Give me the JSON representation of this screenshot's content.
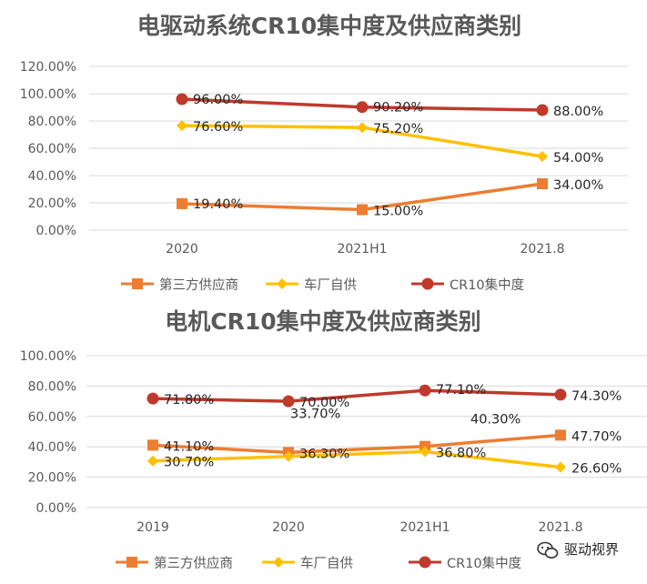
{
  "chart_data": [
    {
      "type": "line",
      "title": "电驱动系统CR10集中度及供应商类别",
      "categories": [
        "2020",
        "2021H1",
        "2021.8"
      ],
      "yticks": [
        "0.00%",
        "20.00%",
        "40.00%",
        "60.00%",
        "80.00%",
        "100.00%",
        "120.00%"
      ],
      "ylim": [
        0,
        120
      ],
      "grid": true,
      "legend_position": "bottom",
      "series": [
        {
          "name": "第三方供应商",
          "values": [
            19.4,
            15.0,
            34.0
          ],
          "labels": [
            "19.40%",
            "15.00%",
            "34.00%"
          ],
          "color": "#ED7D31",
          "marker": "square"
        },
        {
          "name": "车厂自供",
          "values": [
            76.6,
            75.2,
            54.0
          ],
          "labels": [
            "76.60%",
            "75.20%",
            "54.00%"
          ],
          "color": "#FFC000",
          "marker": "diamond"
        },
        {
          "name": "CR10集中度",
          "values": [
            96.0,
            90.2,
            88.0
          ],
          "labels": [
            "96.00%",
            "90.20%",
            "88.00%"
          ],
          "color": "#C0392B",
          "marker": "circle"
        }
      ]
    },
    {
      "type": "line",
      "title": "电机CR10集中度及供应商类别",
      "categories": [
        "2019",
        "2020",
        "2021H1",
        "2021.8"
      ],
      "yticks": [
        "0.00%",
        "20.00%",
        "40.00%",
        "60.00%",
        "80.00%",
        "100.00%"
      ],
      "ylim": [
        0,
        100
      ],
      "grid": true,
      "legend_position": "bottom",
      "series": [
        {
          "name": "第三方供应商",
          "values": [
            41.1,
            36.3,
            40.3,
            47.7
          ],
          "labels": [
            "41.10%",
            "36.30%",
            "40.30%",
            "47.70%"
          ],
          "color": "#ED7D31",
          "marker": "square"
        },
        {
          "name": "车厂自供",
          "values": [
            30.7,
            33.7,
            36.8,
            26.6
          ],
          "labels": [
            "30.70%",
            "33.70%",
            "36.80%",
            "26.60%"
          ],
          "color": "#FFC000",
          "marker": "diamond"
        },
        {
          "name": "CR10集中度",
          "values": [
            71.8,
            70.0,
            77.1,
            74.3
          ],
          "labels": [
            "71.80%",
            "70.00%",
            "77.10%",
            "74.30%"
          ],
          "color": "#C0392B",
          "marker": "circle"
        }
      ]
    }
  ],
  "watermark": {
    "text": "驱动视界",
    "icon": "wechat-icon"
  }
}
